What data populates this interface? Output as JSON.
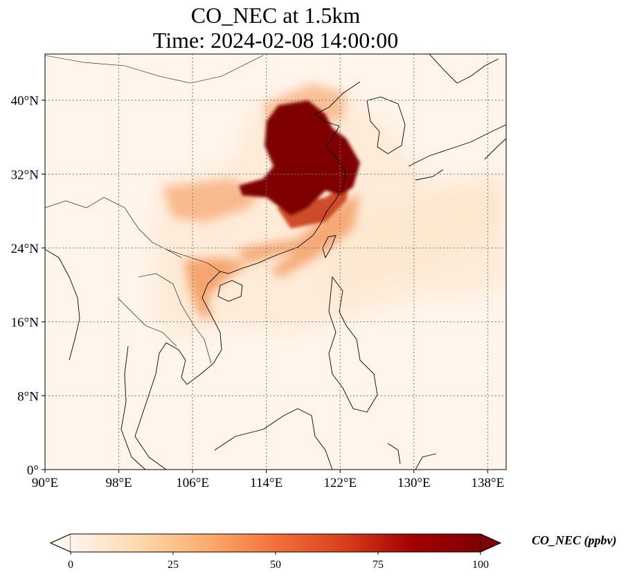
{
  "title": {
    "line1": "CO_NEC at 1.5km",
    "line2": "Time: 2024-02-08 14:00:00"
  },
  "map": {
    "lon_range": [
      90,
      140
    ],
    "lat_range": [
      0,
      45
    ],
    "gridlines": true,
    "lon_ticks": [
      {
        "value": 90,
        "label": "90°E"
      },
      {
        "value": 98,
        "label": "98°E"
      },
      {
        "value": 106,
        "label": "106°E"
      },
      {
        "value": 114,
        "label": "114°E"
      },
      {
        "value": 122,
        "label": "122°E"
      },
      {
        "value": 130,
        "label": "130°E"
      },
      {
        "value": 138,
        "label": "138°E"
      }
    ],
    "lat_ticks": [
      {
        "value": 0,
        "label": "0°"
      },
      {
        "value": 8,
        "label": "8°N"
      },
      {
        "value": 16,
        "label": "16°N"
      },
      {
        "value": 24,
        "label": "24°N"
      },
      {
        "value": 32,
        "label": "32°N"
      },
      {
        "value": 40,
        "label": "40°N"
      }
    ],
    "colors": {
      "background": "#fff5eb",
      "low": "#fde4c8",
      "mid": "#f39a5e",
      "high": "#c93a14",
      "max": "#7f0000",
      "coastline": "#000000",
      "grid": "#777777"
    }
  },
  "colorbar": {
    "label": "CO_NEC (ppbv)",
    "min": 0,
    "max": 100,
    "extend": "both",
    "ticks": [
      {
        "value": 0,
        "label": "0"
      },
      {
        "value": 25,
        "label": "25"
      },
      {
        "value": 50,
        "label": "50"
      },
      {
        "value": 75,
        "label": "75"
      },
      {
        "value": 100,
        "label": "100"
      }
    ],
    "stops": [
      "#fff5eb",
      "#fdd9ad",
      "#fdac6c",
      "#f3703a",
      "#d8401a",
      "#a30002",
      "#7f0000"
    ]
  }
}
